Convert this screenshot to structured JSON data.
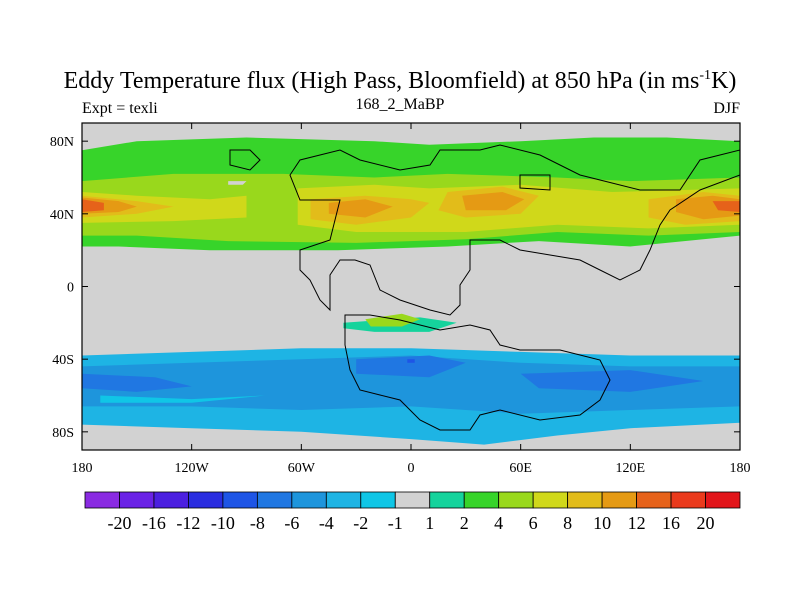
{
  "title": {
    "prefix": "Eddy Temperature flux (High Pass, Bloomfield) at 850 hPa (in ms",
    "exponent": "-1",
    "suffix": "K)"
  },
  "subtitle_left": "Expt = texli",
  "subtitle_center": "168_2_MaBP",
  "subtitle_right": "DJF",
  "chart_data": {
    "type": "heatmap",
    "title": "Eddy Temperature flux (High Pass, Bloomfield) at 850 hPa (in ms-1K)",
    "experiment": "texli",
    "period": "168_2_MaBP",
    "season": "DJF",
    "xlim": [
      -180,
      180
    ],
    "ylim": [
      -90,
      90
    ],
    "x_ticks": [
      {
        "value": -180,
        "label": "180"
      },
      {
        "value": -120,
        "label": "120W"
      },
      {
        "value": -60,
        "label": "60W"
      },
      {
        "value": 0,
        "label": "0"
      },
      {
        "value": 60,
        "label": "60E"
      },
      {
        "value": 120,
        "label": "120E"
      },
      {
        "value": 180,
        "label": "180"
      }
    ],
    "y_ticks": [
      {
        "value": 80,
        "label": "80N"
      },
      {
        "value": 40,
        "label": "40N"
      },
      {
        "value": 0,
        "label": "0"
      },
      {
        "value": -40,
        "label": "40S"
      },
      {
        "value": -80,
        "label": "80S"
      }
    ],
    "colorbar": {
      "levels": [
        "-20",
        "-16",
        "-12",
        "-10",
        "-8",
        "-6",
        "-4",
        "-2",
        "-1",
        "1",
        "2",
        "4",
        "6",
        "8",
        "10",
        "12",
        "16",
        "20"
      ],
      "colors": [
        "#8a2be2",
        "#6a22e6",
        "#4b1fe0",
        "#2a2de0",
        "#1e55e6",
        "#2077e2",
        "#1e95dc",
        "#1eb4e4",
        "#10c6e6",
        "#d2d2d2",
        "#15d39c",
        "#37d42a",
        "#99d81c",
        "#d0d81a",
        "#e2bc1a",
        "#e59a14",
        "#e6621a",
        "#ea3a1c",
        "#e2151a"
      ]
    },
    "regions": [
      {
        "color_index": 11,
        "polygon": [
          [
            -180,
            75
          ],
          [
            -150,
            80
          ],
          [
            -90,
            82
          ],
          [
            -20,
            80
          ],
          [
            10,
            78
          ],
          [
            60,
            80
          ],
          [
            100,
            82
          ],
          [
            140,
            82
          ],
          [
            180,
            80
          ],
          [
            180,
            28
          ],
          [
            120,
            22
          ],
          [
            70,
            25
          ],
          [
            20,
            22
          ],
          [
            -40,
            20
          ],
          [
            -110,
            20
          ],
          [
            -160,
            22
          ],
          [
            -180,
            22
          ]
        ]
      },
      {
        "color_index": 12,
        "polygon": [
          [
            -180,
            58
          ],
          [
            -130,
            62
          ],
          [
            -70,
            62
          ],
          [
            -20,
            60
          ],
          [
            20,
            62
          ],
          [
            80,
            60
          ],
          [
            120,
            58
          ],
          [
            180,
            60
          ],
          [
            180,
            30
          ],
          [
            130,
            28
          ],
          [
            80,
            30
          ],
          [
            30,
            26
          ],
          [
            -30,
            24
          ],
          [
            -100,
            25
          ],
          [
            -150,
            28
          ],
          [
            -180,
            28
          ]
        ]
      },
      {
        "color_index": 13,
        "polygon": [
          [
            -180,
            52
          ],
          [
            -150,
            50
          ],
          [
            -110,
            48
          ],
          [
            -90,
            50
          ],
          [
            -90,
            38
          ],
          [
            -130,
            36
          ],
          [
            -180,
            35
          ]
        ]
      },
      {
        "color_index": 13,
        "polygon": [
          [
            -62,
            54
          ],
          [
            -20,
            56
          ],
          [
            10,
            54
          ],
          [
            60,
            56
          ],
          [
            110,
            52
          ],
          [
            180,
            54
          ],
          [
            180,
            34
          ],
          [
            130,
            32
          ],
          [
            80,
            34
          ],
          [
            30,
            30
          ],
          [
            -30,
            30
          ],
          [
            -62,
            34
          ]
        ]
      },
      {
        "color_index": 14,
        "polygon": [
          [
            -180,
            50
          ],
          [
            -150,
            47
          ],
          [
            -130,
            44
          ],
          [
            -150,
            40
          ],
          [
            -180,
            38
          ]
        ]
      },
      {
        "color_index": 14,
        "polygon": [
          [
            -55,
            48
          ],
          [
            -25,
            50
          ],
          [
            0,
            48
          ],
          [
            10,
            46
          ],
          [
            0,
            38
          ],
          [
            -30,
            34
          ],
          [
            -55,
            37
          ]
        ]
      },
      {
        "color_index": 14,
        "polygon": [
          [
            20,
            52
          ],
          [
            50,
            55
          ],
          [
            70,
            50
          ],
          [
            60,
            40
          ],
          [
            30,
            38
          ],
          [
            15,
            42
          ]
        ]
      },
      {
        "color_index": 14,
        "polygon": [
          [
            130,
            48
          ],
          [
            160,
            52
          ],
          [
            180,
            50
          ],
          [
            180,
            36
          ],
          [
            150,
            34
          ],
          [
            130,
            38
          ]
        ]
      },
      {
        "color_index": 15,
        "polygon": [
          [
            -180,
            49
          ],
          [
            -160,
            47
          ],
          [
            -150,
            44
          ],
          [
            -160,
            41
          ],
          [
            -180,
            40
          ]
        ]
      },
      {
        "color_index": 15,
        "polygon": [
          [
            -45,
            46
          ],
          [
            -25,
            48
          ],
          [
            -10,
            44
          ],
          [
            -25,
            38
          ],
          [
            -45,
            40
          ]
        ]
      },
      {
        "color_index": 15,
        "polygon": [
          [
            28,
            50
          ],
          [
            50,
            52
          ],
          [
            62,
            48
          ],
          [
            52,
            42
          ],
          [
            30,
            42
          ]
        ]
      },
      {
        "color_index": 15,
        "polygon": [
          [
            145,
            48
          ],
          [
            165,
            50
          ],
          [
            180,
            48
          ],
          [
            180,
            39
          ],
          [
            160,
            37
          ],
          [
            145,
            41
          ]
        ]
      },
      {
        "color_index": 16,
        "polygon": [
          [
            -180,
            48
          ],
          [
            -168,
            46
          ],
          [
            -168,
            42
          ],
          [
            -180,
            41
          ]
        ]
      },
      {
        "color_index": 16,
        "polygon": [
          [
            165,
            47
          ],
          [
            180,
            47
          ],
          [
            180,
            41
          ],
          [
            168,
            42
          ]
        ]
      },
      {
        "color_index": 10,
        "polygon": [
          [
            -37,
            -20
          ],
          [
            -10,
            -18
          ],
          [
            5,
            -17
          ],
          [
            25,
            -20
          ],
          [
            10,
            -25
          ],
          [
            -20,
            -25
          ],
          [
            -37,
            -23
          ]
        ]
      },
      {
        "color_index": 12,
        "polygon": [
          [
            -25,
            -18
          ],
          [
            -5,
            -15
          ],
          [
            5,
            -18
          ],
          [
            -5,
            -22
          ],
          [
            -22,
            -22
          ]
        ]
      },
      {
        "color_index": 7,
        "polygon": [
          [
            -180,
            -38
          ],
          [
            -120,
            -36
          ],
          [
            -60,
            -34
          ],
          [
            0,
            -34
          ],
          [
            60,
            -36
          ],
          [
            120,
            -38
          ],
          [
            180,
            -38
          ],
          [
            180,
            -75
          ],
          [
            120,
            -78
          ],
          [
            80,
            -82
          ],
          [
            40,
            -87
          ],
          [
            0,
            -84
          ],
          [
            -60,
            -80
          ],
          [
            -120,
            -78
          ],
          [
            -180,
            -76
          ]
        ]
      },
      {
        "color_index": 6,
        "polygon": [
          [
            -180,
            -44
          ],
          [
            -120,
            -42
          ],
          [
            -60,
            -40
          ],
          [
            0,
            -38
          ],
          [
            60,
            -42
          ],
          [
            120,
            -44
          ],
          [
            180,
            -44
          ],
          [
            180,
            -66
          ],
          [
            120,
            -68
          ],
          [
            60,
            -70
          ],
          [
            0,
            -66
          ],
          [
            -60,
            -68
          ],
          [
            -120,
            -66
          ],
          [
            -180,
            -66
          ]
        ]
      },
      {
        "color_index": 5,
        "polygon": [
          [
            -180,
            -48
          ],
          [
            -140,
            -50
          ],
          [
            -120,
            -55
          ],
          [
            -150,
            -58
          ],
          [
            -180,
            -56
          ]
        ]
      },
      {
        "color_index": 5,
        "polygon": [
          [
            -30,
            -40
          ],
          [
            10,
            -38
          ],
          [
            30,
            -42
          ],
          [
            10,
            -50
          ],
          [
            -30,
            -48
          ]
        ]
      },
      {
        "color_index": 5,
        "polygon": [
          [
            60,
            -48
          ],
          [
            120,
            -46
          ],
          [
            160,
            -52
          ],
          [
            120,
            -58
          ],
          [
            70,
            -56
          ]
        ]
      },
      {
        "color_index": 4,
        "polygon": [
          [
            -2,
            -40
          ],
          [
            2,
            -40
          ],
          [
            2,
            -42
          ],
          [
            -2,
            -42
          ]
        ]
      },
      {
        "color_index": 8,
        "polygon": [
          [
            -170,
            -60
          ],
          [
            -120,
            -62
          ],
          [
            -80,
            -60
          ],
          [
            -120,
            -64
          ],
          [
            -170,
            -64
          ]
        ]
      },
      {
        "color_index": 9,
        "polygon": [
          [
            -100,
            58
          ],
          [
            -90,
            58
          ],
          [
            -92,
            56
          ],
          [
            -100,
            56
          ]
        ]
      }
    ]
  }
}
